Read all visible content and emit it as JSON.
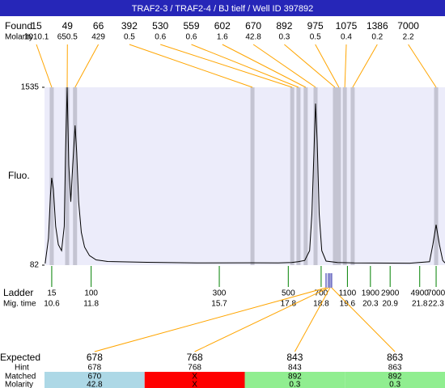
{
  "chart_data": {
    "type": "electropherogram",
    "title": "TRAF2-3 / TRAF2-4 / BJ tielf / Well ID 397892",
    "found_label": "Found",
    "molarity_label": "Molarity",
    "peaks": {
      "sizes": [
        15,
        49,
        66,
        392,
        530,
        559,
        602,
        670,
        892,
        975,
        1075,
        1386,
        7000
      ],
      "molarity": [
        1010.1,
        650.5,
        429,
        0.5,
        0.6,
        0.6,
        1.6,
        42.8,
        0.3,
        0.5,
        0.4,
        0.2,
        2.2
      ],
      "x": [
        10.6,
        11.07,
        11.31,
        16.71,
        17.92,
        18.11,
        18.33,
        18.63,
        19.22,
        19.34,
        19.52,
        19.76,
        22.3
      ]
    },
    "y_label": "Fluo.",
    "ylim": [
      82,
      1535
    ],
    "yticks": [
      1535,
      82
    ],
    "xlim": [
      10.38,
      22.57
    ],
    "trace": {
      "color": "#000000",
      "x": [
        10.4,
        10.5,
        10.56,
        10.6,
        10.65,
        10.72,
        10.8,
        10.9,
        10.98,
        11.02,
        11.07,
        11.12,
        11.18,
        11.24,
        11.31,
        11.36,
        11.42,
        11.5,
        11.6,
        11.75,
        11.95,
        12.3,
        13.5,
        15,
        16.7,
        17.5,
        17.9,
        18.1,
        18.3,
        18.45,
        18.52,
        18.58,
        18.63,
        18.68,
        18.74,
        18.82,
        18.95,
        19.3,
        19.8,
        21.5,
        22.1,
        22.2,
        22.3,
        22.4,
        22.5,
        22.57
      ],
      "values": [
        95,
        300,
        650,
        795,
        700,
        400,
        250,
        200,
        400,
        1000,
        1535,
        900,
        600,
        900,
        1224,
        1000,
        600,
        350,
        230,
        160,
        125,
        112,
        105,
        100,
        101,
        100,
        104,
        110,
        120,
        200,
        500,
        1000,
        1402,
        1100,
        500,
        200,
        115,
        104,
        100,
        98,
        110,
        250,
        412,
        250,
        120,
        100
      ]
    },
    "ladder": {
      "label": "Ladder",
      "time_label": "Mig. time",
      "color": "#008000",
      "sizes": [
        15,
        100,
        300,
        500,
        700,
        1100,
        1900,
        2900,
        4900,
        7000
      ],
      "x": [
        10.6,
        11.8,
        15.7,
        17.8,
        18.8,
        19.6,
        20.3,
        20.9,
        21.8,
        22.3
      ]
    },
    "expected_table": {
      "labels": [
        "Expected",
        "Hint",
        "Matched",
        "Molarity"
      ],
      "expected": [
        678,
        768,
        843,
        863
      ],
      "hint": [
        678,
        768,
        843,
        863
      ],
      "matched": [
        670,
        "X",
        892,
        892
      ],
      "molarity": [
        42.8,
        "X",
        0.3,
        0.3
      ],
      "colors": [
        "#add8e6",
        "#ff0000",
        "#90ee90",
        "#90ee90"
      ],
      "x": [
        18.95,
        19.02,
        19.07,
        19.12
      ],
      "marker_color": "#1a1aa0"
    },
    "line_color": "#ffa500",
    "band_color": "#c4c4d2",
    "background": "#ececfa",
    "title_color": "#2626b8"
  }
}
